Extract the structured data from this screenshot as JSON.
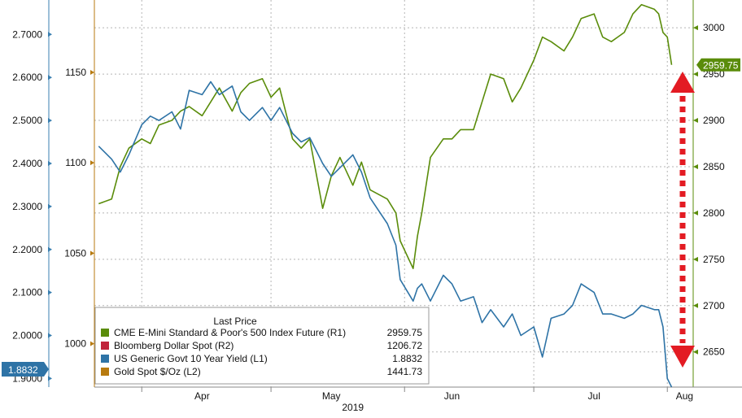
{
  "chart_data": {
    "type": "line",
    "title": "",
    "xlabel": "2019",
    "x_ticks": [
      "Apr",
      "May",
      "Jun",
      "Jul",
      "Aug"
    ],
    "axes": {
      "far_left": {
        "label": "",
        "ticks": [
          "1.9000",
          "2.0000",
          "2.1000",
          "2.2000",
          "2.3000",
          "2.4000",
          "2.5000",
          "2.6000",
          "2.7000"
        ],
        "range": [
          1.88,
          2.78
        ]
      },
      "left": {
        "label": "",
        "ticks": [
          "1000",
          "1050",
          "1100",
          "1150"
        ],
        "range": [
          976,
          1190
        ]
      },
      "right": {
        "label": "",
        "ticks": [
          "2650",
          "2700",
          "2750",
          "2800",
          "2850",
          "2900",
          "2950",
          "3000"
        ],
        "range": [
          2612,
          3030
        ]
      }
    },
    "legend": {
      "title": "Last Price",
      "placement": "bottom-left",
      "entries": [
        {
          "name": "CME E-Mini Standard & Poor's 500 Index Future (R1)",
          "value": "2959.75",
          "color": "#5a8c0a"
        },
        {
          "name": "Bloomberg Dollar Spot (R2)",
          "value": "1206.72",
          "color": "#c0233a"
        },
        {
          "name": "US Generic Govt 10 Year Yield (L1)",
          "value": "1.8832",
          "color": "#2e73a6"
        },
        {
          "name": "Gold Spot $/Oz (L2)",
          "value": "1441.73",
          "color": "#b77a0f"
        }
      ]
    },
    "last_value_badges": {
      "sp500": "2959.75",
      "yield": "1.8832"
    },
    "series": [
      {
        "name": "CME E-Mini Standard & Poor's 500 Index Future (R1)",
        "axis": "right",
        "color": "#5a8c0a",
        "points": [
          [
            "2019-03-22",
            2810
          ],
          [
            "2019-03-25",
            2815
          ],
          [
            "2019-03-27",
            2850
          ],
          [
            "2019-03-29",
            2870
          ],
          [
            "2019-04-01",
            2880
          ],
          [
            "2019-04-03",
            2875
          ],
          [
            "2019-04-05",
            2895
          ],
          [
            "2019-04-08",
            2900
          ],
          [
            "2019-04-10",
            2910
          ],
          [
            "2019-04-12",
            2915
          ],
          [
            "2019-04-15",
            2905
          ],
          [
            "2019-04-17",
            2920
          ],
          [
            "2019-04-19",
            2935
          ],
          [
            "2019-04-22",
            2910
          ],
          [
            "2019-04-24",
            2930
          ],
          [
            "2019-04-26",
            2940
          ],
          [
            "2019-04-29",
            2945
          ],
          [
            "2019-05-01",
            2925
          ],
          [
            "2019-05-03",
            2935
          ],
          [
            "2019-05-06",
            2880
          ],
          [
            "2019-05-08",
            2870
          ],
          [
            "2019-05-10",
            2880
          ],
          [
            "2019-05-13",
            2805
          ],
          [
            "2019-05-15",
            2840
          ],
          [
            "2019-05-17",
            2860
          ],
          [
            "2019-05-20",
            2830
          ],
          [
            "2019-05-22",
            2855
          ],
          [
            "2019-05-24",
            2825
          ],
          [
            "2019-05-28",
            2815
          ],
          [
            "2019-05-30",
            2800
          ],
          [
            "2019-05-31",
            2770
          ],
          [
            "2019-06-03",
            2740
          ],
          [
            "2019-06-04",
            2775
          ],
          [
            "2019-06-05",
            2800
          ],
          [
            "2019-06-07",
            2860
          ],
          [
            "2019-06-10",
            2880
          ],
          [
            "2019-06-12",
            2880
          ],
          [
            "2019-06-14",
            2890
          ],
          [
            "2019-06-17",
            2890
          ],
          [
            "2019-06-19",
            2920
          ],
          [
            "2019-06-21",
            2950
          ],
          [
            "2019-06-24",
            2945
          ],
          [
            "2019-06-26",
            2920
          ],
          [
            "2019-06-28",
            2935
          ],
          [
            "2019-07-01",
            2965
          ],
          [
            "2019-07-03",
            2990
          ],
          [
            "2019-07-05",
            2985
          ],
          [
            "2019-07-08",
            2975
          ],
          [
            "2019-07-10",
            2990
          ],
          [
            "2019-07-12",
            3010
          ],
          [
            "2019-07-15",
            3015
          ],
          [
            "2019-07-17",
            2990
          ],
          [
            "2019-07-19",
            2985
          ],
          [
            "2019-07-22",
            2995
          ],
          [
            "2019-07-24",
            3015
          ],
          [
            "2019-07-26",
            3025
          ],
          [
            "2019-07-29",
            3020
          ],
          [
            "2019-07-30",
            3015
          ],
          [
            "2019-07-31",
            2995
          ],
          [
            "2019-08-01",
            2990
          ],
          [
            "2019-08-02",
            2960
          ]
        ]
      },
      {
        "name": "US Generic Govt 10 Year Yield (L1)",
        "axis": "far_left",
        "color": "#2e73a6",
        "points": [
          [
            "2019-03-22",
            2.44
          ],
          [
            "2019-03-25",
            2.41
          ],
          [
            "2019-03-27",
            2.38
          ],
          [
            "2019-03-29",
            2.42
          ],
          [
            "2019-04-01",
            2.49
          ],
          [
            "2019-04-03",
            2.51
          ],
          [
            "2019-04-05",
            2.5
          ],
          [
            "2019-04-08",
            2.52
          ],
          [
            "2019-04-10",
            2.48
          ],
          [
            "2019-04-12",
            2.57
          ],
          [
            "2019-04-15",
            2.56
          ],
          [
            "2019-04-17",
            2.59
          ],
          [
            "2019-04-19",
            2.56
          ],
          [
            "2019-04-22",
            2.58
          ],
          [
            "2019-04-24",
            2.52
          ],
          [
            "2019-04-26",
            2.5
          ],
          [
            "2019-04-29",
            2.53
          ],
          [
            "2019-05-01",
            2.5
          ],
          [
            "2019-05-03",
            2.53
          ],
          [
            "2019-05-06",
            2.47
          ],
          [
            "2019-05-08",
            2.45
          ],
          [
            "2019-05-10",
            2.46
          ],
          [
            "2019-05-13",
            2.4
          ],
          [
            "2019-05-15",
            2.37
          ],
          [
            "2019-05-17",
            2.39
          ],
          [
            "2019-05-20",
            2.42
          ],
          [
            "2019-05-22",
            2.38
          ],
          [
            "2019-05-24",
            2.32
          ],
          [
            "2019-05-28",
            2.26
          ],
          [
            "2019-05-30",
            2.21
          ],
          [
            "2019-05-31",
            2.13
          ],
          [
            "2019-06-03",
            2.08
          ],
          [
            "2019-06-04",
            2.11
          ],
          [
            "2019-06-05",
            2.12
          ],
          [
            "2019-06-07",
            2.08
          ],
          [
            "2019-06-10",
            2.14
          ],
          [
            "2019-06-12",
            2.12
          ],
          [
            "2019-06-14",
            2.08
          ],
          [
            "2019-06-17",
            2.09
          ],
          [
            "2019-06-19",
            2.03
          ],
          [
            "2019-06-21",
            2.06
          ],
          [
            "2019-06-24",
            2.02
          ],
          [
            "2019-06-26",
            2.05
          ],
          [
            "2019-06-28",
            2.0
          ],
          [
            "2019-07-01",
            2.02
          ],
          [
            "2019-07-03",
            1.95
          ],
          [
            "2019-07-05",
            2.04
          ],
          [
            "2019-07-08",
            2.05
          ],
          [
            "2019-07-10",
            2.07
          ],
          [
            "2019-07-12",
            2.12
          ],
          [
            "2019-07-15",
            2.1
          ],
          [
            "2019-07-17",
            2.05
          ],
          [
            "2019-07-19",
            2.05
          ],
          [
            "2019-07-22",
            2.04
          ],
          [
            "2019-07-24",
            2.05
          ],
          [
            "2019-07-26",
            2.07
          ],
          [
            "2019-07-29",
            2.06
          ],
          [
            "2019-07-30",
            2.06
          ],
          [
            "2019-07-31",
            2.02
          ],
          [
            "2019-08-01",
            1.9
          ],
          [
            "2019-08-02",
            1.88
          ]
        ]
      }
    ],
    "annotation": {
      "type": "double-arrow",
      "color": "#e31b23",
      "style": "dotted"
    }
  }
}
